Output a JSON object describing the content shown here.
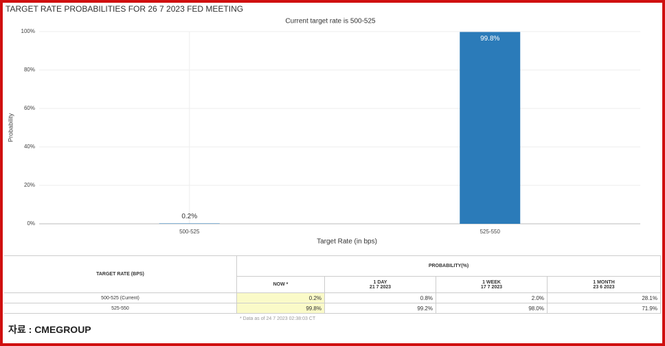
{
  "chart_data": {
    "type": "bar",
    "title": "TARGET RATE PROBABILITIES FOR 26 7 2023 FED MEETING",
    "subtitle": "Current target rate is 500-525",
    "x_label": "Target Rate (in bps)",
    "y_label": "Probability",
    "categories": [
      "500-525",
      "525-550"
    ],
    "values": [
      0.2,
      99.8
    ],
    "value_labels": [
      "0.2%",
      "99.8%"
    ],
    "color": "#2b7bb9",
    "ylim": [
      0,
      100
    ],
    "yticks": [
      {
        "value": 0,
        "label": "0%"
      },
      {
        "value": 20,
        "label": "20%"
      },
      {
        "value": 40,
        "label": "40%"
      },
      {
        "value": 60,
        "label": "60%"
      },
      {
        "value": 80,
        "label": "80%"
      },
      {
        "value": 100,
        "label": "100%"
      }
    ],
    "grid": true
  },
  "table": {
    "header": {
      "rate": "TARGET RATE (BPS)",
      "probability": "PROBABILITY(%)",
      "columns": [
        [
          "NOW *"
        ],
        [
          "1 DAY",
          "21 7 2023"
        ],
        [
          "1 WEEK",
          "17 7 2023"
        ],
        [
          "1 MONTH",
          "23 6 2023"
        ]
      ]
    },
    "rows": [
      [
        "500-525 (Current)",
        "0.2%",
        "0.8%",
        "2.0%",
        "28.1%"
      ],
      [
        "525-550",
        "99.8%",
        "99.2%",
        "98.0%",
        "71.9%"
      ]
    ],
    "footnote": "* Data as of 24 7 2023 02:38:03 CT"
  },
  "source": "자료 : CMEGROUP"
}
